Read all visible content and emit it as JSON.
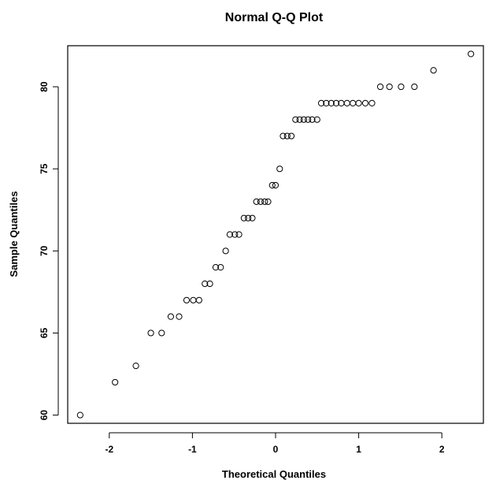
{
  "chart_data": {
    "type": "scatter",
    "title": "Normal Q-Q Plot",
    "xlabel": "Theoretical Quantiles",
    "ylabel": "Sample Quantiles",
    "xlim": [
      -2.5,
      2.5
    ],
    "ylim": [
      59.5,
      82.5
    ],
    "x_ticks": [
      -2,
      -1,
      0,
      1,
      2
    ],
    "x_tick_labels": [
      "-2",
      "-1",
      "0",
      "1",
      "2"
    ],
    "y_ticks": [
      60,
      65,
      70,
      75,
      80
    ],
    "y_tick_labels": [
      "60",
      "65",
      "70",
      "75",
      "80"
    ],
    "grid": false,
    "marker": "open-circle",
    "colors": {
      "marker": "#000000",
      "frame": "#000000"
    },
    "points": [
      {
        "x": -2.35,
        "y": 60
      },
      {
        "x": -1.93,
        "y": 62
      },
      {
        "x": -1.68,
        "y": 63
      },
      {
        "x": -1.5,
        "y": 65
      },
      {
        "x": -1.37,
        "y": 65
      },
      {
        "x": -1.26,
        "y": 66
      },
      {
        "x": -1.16,
        "y": 66
      },
      {
        "x": -1.07,
        "y": 67
      },
      {
        "x": -0.99,
        "y": 67
      },
      {
        "x": -0.92,
        "y": 67
      },
      {
        "x": -0.85,
        "y": 68
      },
      {
        "x": -0.79,
        "y": 68
      },
      {
        "x": -0.72,
        "y": 69
      },
      {
        "x": -0.66,
        "y": 69
      },
      {
        "x": -0.6,
        "y": 70
      },
      {
        "x": -0.55,
        "y": 71
      },
      {
        "x": -0.49,
        "y": 71
      },
      {
        "x": -0.44,
        "y": 71
      },
      {
        "x": -0.38,
        "y": 72
      },
      {
        "x": -0.33,
        "y": 72
      },
      {
        "x": -0.28,
        "y": 72
      },
      {
        "x": -0.23,
        "y": 73
      },
      {
        "x": -0.18,
        "y": 73
      },
      {
        "x": -0.13,
        "y": 73
      },
      {
        "x": -0.09,
        "y": 73
      },
      {
        "x": -0.04,
        "y": 74
      },
      {
        "x": 0.0,
        "y": 74
      },
      {
        "x": 0.05,
        "y": 75
      },
      {
        "x": 0.09,
        "y": 77
      },
      {
        "x": 0.14,
        "y": 77
      },
      {
        "x": 0.19,
        "y": 77
      },
      {
        "x": 0.24,
        "y": 78
      },
      {
        "x": 0.29,
        "y": 78
      },
      {
        "x": 0.34,
        "y": 78
      },
      {
        "x": 0.39,
        "y": 78
      },
      {
        "x": 0.44,
        "y": 78
      },
      {
        "x": 0.5,
        "y": 78
      },
      {
        "x": 0.55,
        "y": 79
      },
      {
        "x": 0.61,
        "y": 79
      },
      {
        "x": 0.67,
        "y": 79
      },
      {
        "x": 0.73,
        "y": 79
      },
      {
        "x": 0.79,
        "y": 79
      },
      {
        "x": 0.86,
        "y": 79
      },
      {
        "x": 0.93,
        "y": 79
      },
      {
        "x": 1.0,
        "y": 79
      },
      {
        "x": 1.08,
        "y": 79
      },
      {
        "x": 1.16,
        "y": 79
      },
      {
        "x": 1.26,
        "y": 80
      },
      {
        "x": 1.37,
        "y": 80
      },
      {
        "x": 1.51,
        "y": 80
      },
      {
        "x": 1.67,
        "y": 80
      },
      {
        "x": 1.9,
        "y": 81
      },
      {
        "x": 2.35,
        "y": 82
      }
    ]
  }
}
